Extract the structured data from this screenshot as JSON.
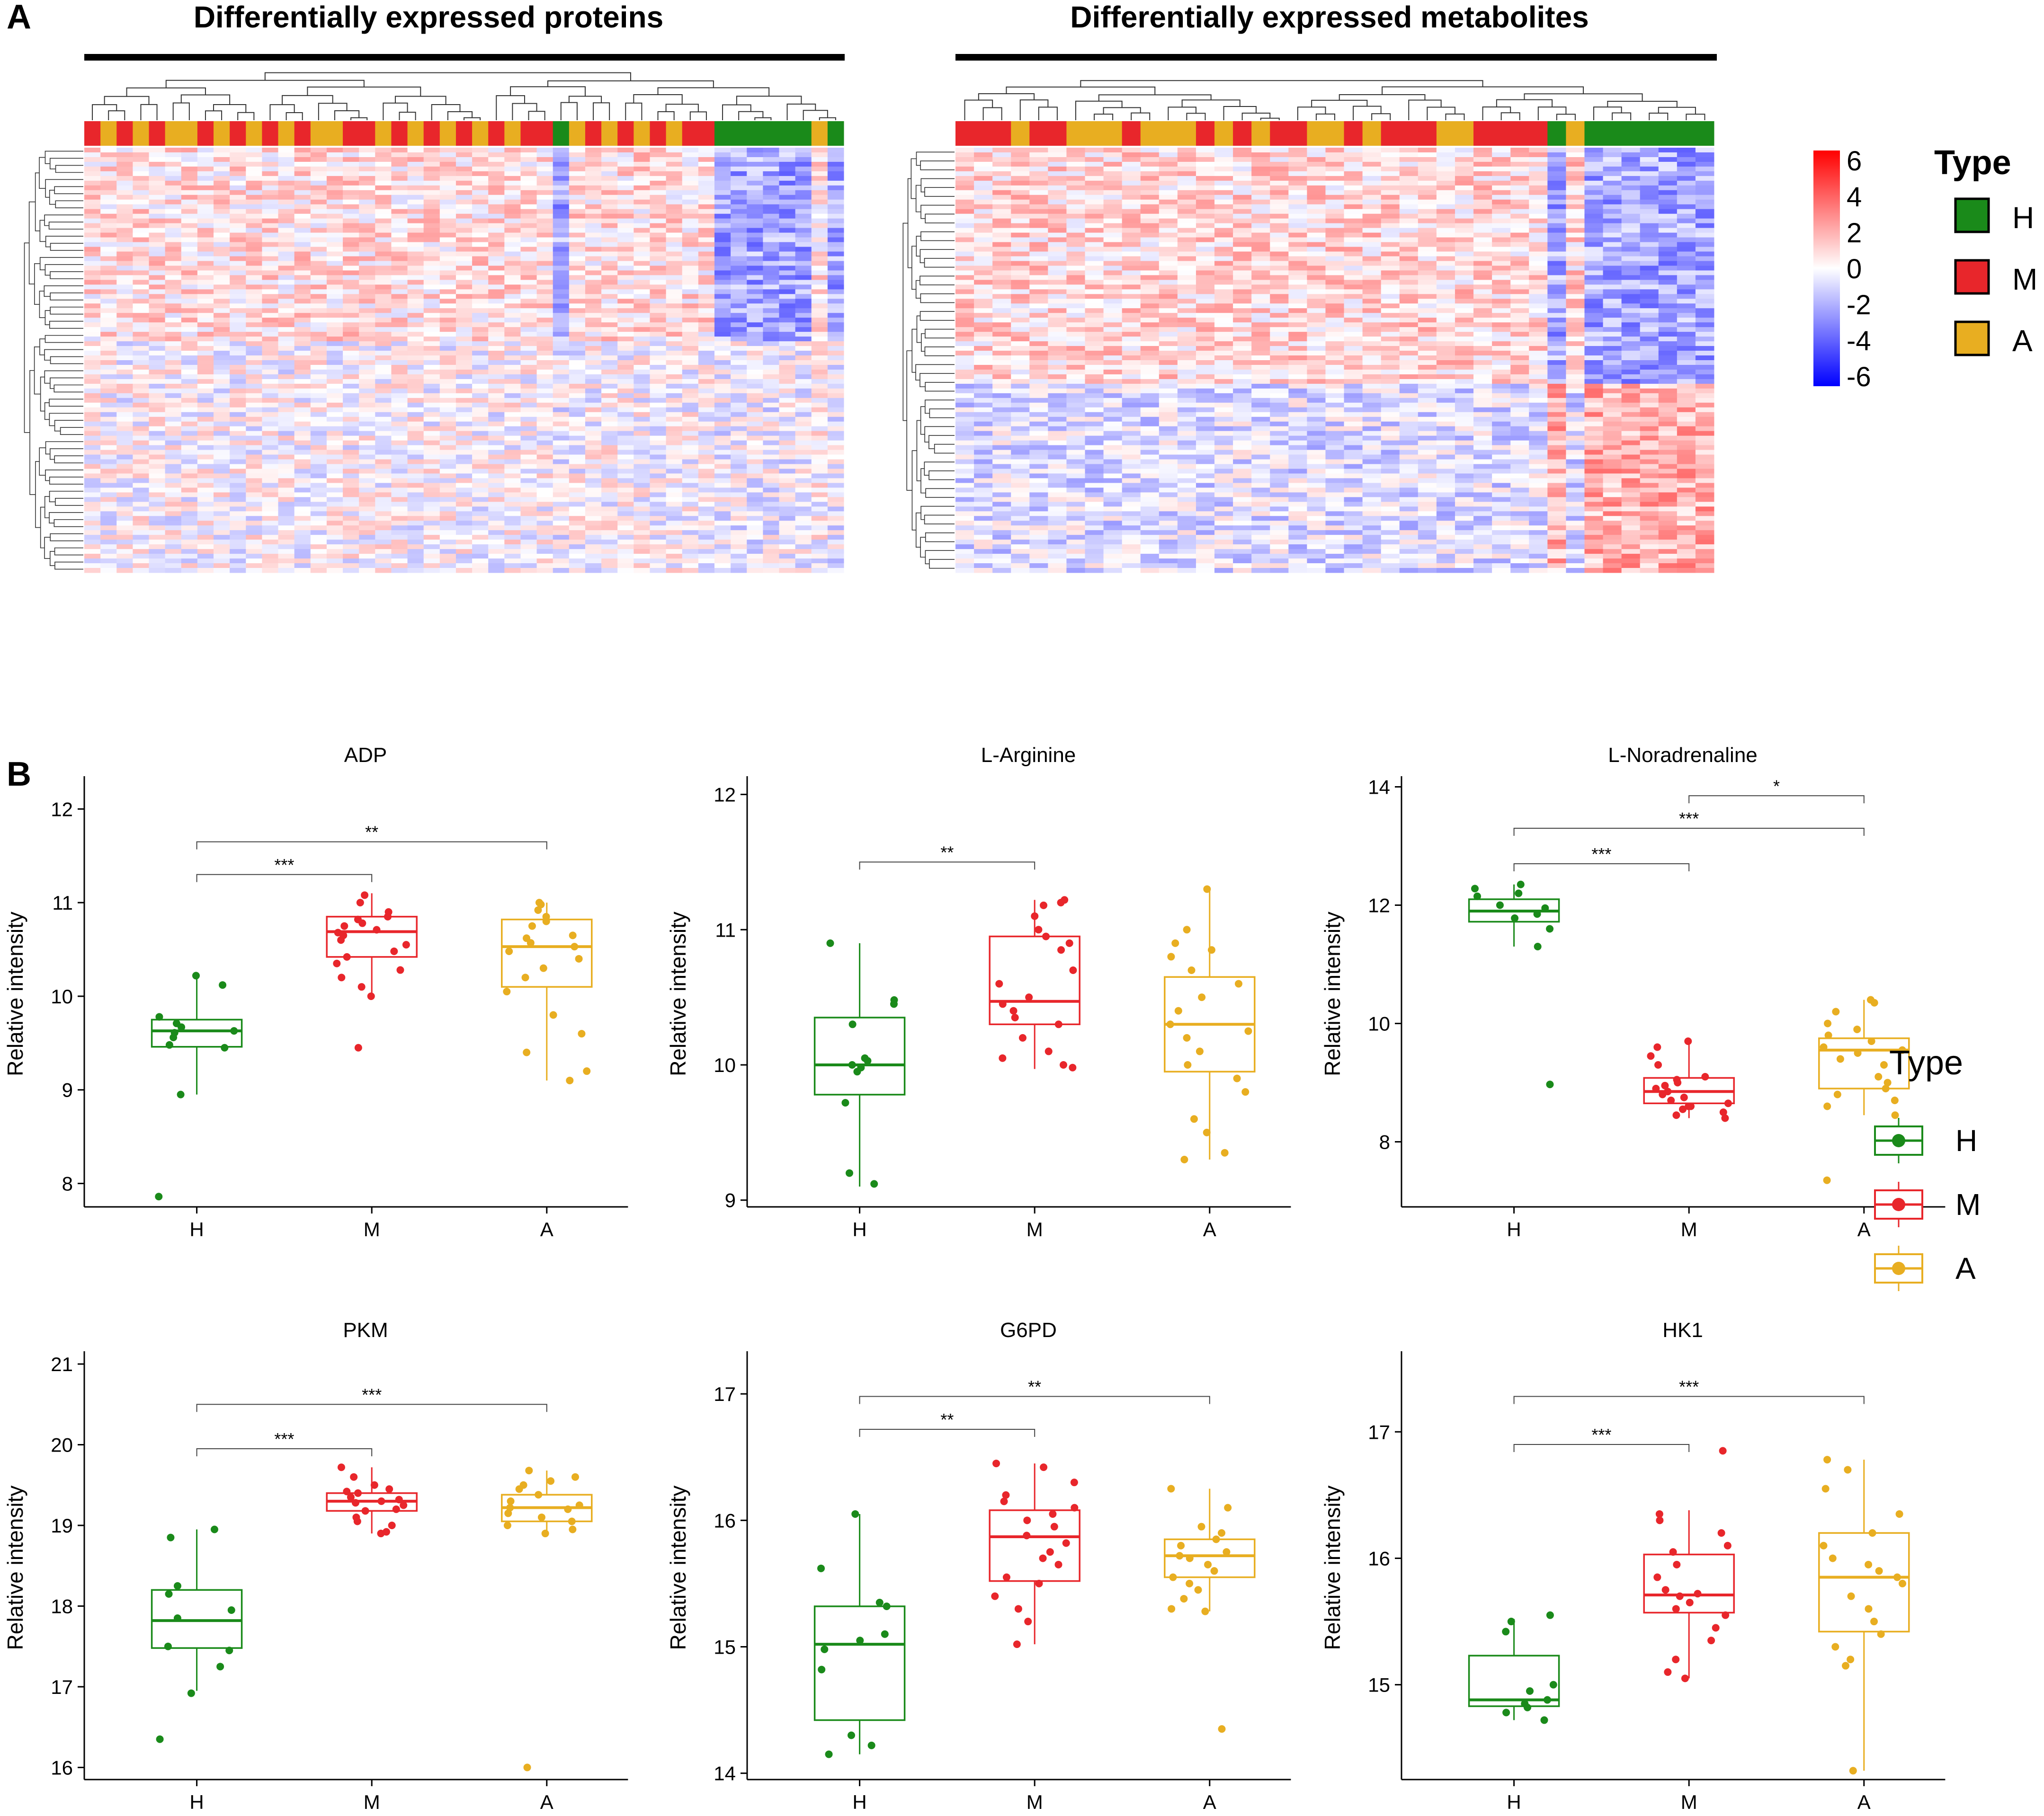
{
  "panel_labels": [
    "A",
    "B"
  ],
  "colors": {
    "H": "#1a8a1a",
    "M": "#e8262b",
    "A": "#e8ae21",
    "heat_high": "#ff0000",
    "heat_mid": "#ffffff",
    "heat_low": "#0000ff"
  },
  "chart_data": [
    {
      "type": "heatmap",
      "title": "Differentially expressed proteins",
      "annotation_groups": "H,M,A",
      "group_order": [
        "M",
        "A",
        "M",
        "A",
        "M",
        "A",
        "A",
        "M",
        "A",
        "M",
        "A",
        "M",
        "A",
        "M",
        "A",
        "A",
        "M",
        "M",
        "A",
        "M",
        "A",
        "M",
        "A",
        "M",
        "A",
        "M",
        "A",
        "M",
        "M",
        "H",
        "A",
        "M",
        "A",
        "M",
        "A",
        "M",
        "A",
        "M",
        "M",
        "H",
        "H",
        "H",
        "H",
        "H",
        "H",
        "A",
        "H"
      ],
      "color_scale": {
        "min": -6,
        "max": 6
      }
    },
    {
      "type": "heatmap",
      "title": "Differentially expressed metabolites",
      "group_order": [
        "M",
        "M",
        "M",
        "A",
        "M",
        "M",
        "A",
        "A",
        "A",
        "M",
        "A",
        "A",
        "A",
        "M",
        "A",
        "M",
        "A",
        "M",
        "M",
        "A",
        "A",
        "M",
        "A",
        "M",
        "M",
        "M",
        "A",
        "A",
        "M",
        "M",
        "M",
        "M",
        "H",
        "A",
        "H",
        "H",
        "H",
        "H",
        "H",
        "H",
        "H"
      ],
      "color_scale": {
        "min": -6,
        "max": 6
      }
    },
    {
      "type": "box",
      "title": "ADP",
      "ylabel": "Relative intensity",
      "categories": [
        "H",
        "M",
        "A"
      ],
      "ylim": [
        7.75,
        12.3
      ],
      "yticks": [
        8,
        9,
        10,
        11,
        12
      ],
      "boxes": [
        {
          "group": "H",
          "whisker_low": 8.95,
          "q1": 9.46,
          "median": 9.63,
          "q3": 9.75,
          "whisker_high": 10.22,
          "points": [
            9.78,
            9.63,
            9.71,
            9.67,
            9.61,
            9.56,
            9.45,
            9.48,
            10.12,
            10.22,
            8.95,
            7.86
          ]
        },
        {
          "group": "M",
          "whisker_low": 10.0,
          "q1": 10.42,
          "median": 10.69,
          "q3": 10.85,
          "whisker_high": 11.1,
          "points": [
            10.9,
            10.85,
            10.82,
            10.78,
            10.75,
            10.71,
            10.68,
            10.65,
            10.6,
            10.55,
            10.48,
            10.42,
            10.35,
            10.28,
            10.2,
            10.1,
            10.0,
            11.0,
            11.08,
            9.45
          ]
        },
        {
          "group": "A",
          "whisker_low": 9.1,
          "q1": 10.1,
          "median": 10.53,
          "q3": 10.82,
          "whisker_high": 11.0,
          "points": [
            10.98,
            10.92,
            10.85,
            10.8,
            10.75,
            10.65,
            10.57,
            10.53,
            10.4,
            10.3,
            10.2,
            10.05,
            9.8,
            9.6,
            9.4,
            9.2,
            9.1,
            11.0,
            10.62,
            10.48
          ]
        }
      ],
      "significance": [
        {
          "from": "H",
          "to": "M",
          "label": "***",
          "y": 11.3
        },
        {
          "from": "H",
          "to": "A",
          "label": "**",
          "y": 11.65
        }
      ]
    },
    {
      "type": "box",
      "title": "L-Arginine",
      "ylabel": "Relative intensity",
      "categories": [
        "H",
        "M",
        "A"
      ],
      "ylim": [
        8.95,
        12.1
      ],
      "yticks": [
        9,
        10,
        11,
        12
      ],
      "boxes": [
        {
          "group": "H",
          "whisker_low": 9.1,
          "q1": 9.78,
          "median": 10.0,
          "q3": 10.35,
          "whisker_high": 10.9,
          "points": [
            10.9,
            10.48,
            10.45,
            10.05,
            10.03,
            10.0,
            9.98,
            9.95,
            9.72,
            9.2,
            9.12,
            10.3
          ]
        },
        {
          "group": "M",
          "whisker_low": 9.97,
          "q1": 10.3,
          "median": 10.47,
          "q3": 10.95,
          "whisker_high": 11.22,
          "points": [
            11.22,
            11.2,
            11.18,
            11.1,
            11.0,
            10.95,
            10.9,
            10.85,
            10.7,
            10.6,
            10.5,
            10.45,
            10.4,
            10.35,
            10.3,
            10.2,
            10.05,
            10.0,
            9.98,
            10.1
          ]
        },
        {
          "group": "A",
          "whisker_low": 9.3,
          "q1": 9.95,
          "median": 10.3,
          "q3": 10.65,
          "whisker_high": 11.3,
          "points": [
            11.3,
            11.0,
            10.9,
            10.85,
            10.8,
            10.7,
            10.6,
            10.5,
            10.4,
            10.3,
            10.25,
            10.2,
            10.1,
            10.0,
            9.9,
            9.8,
            9.6,
            9.5,
            9.35,
            9.3
          ]
        }
      ],
      "significance": [
        {
          "from": "H",
          "to": "M",
          "label": "**",
          "y": 11.5
        }
      ]
    },
    {
      "type": "box",
      "title": "L-Noradrenaline",
      "ylabel": "Relative intensity",
      "categories": [
        "H",
        "M",
        "A"
      ],
      "ylim": [
        6.9,
        14.1
      ],
      "yticks": [
        8,
        10,
        12,
        14
      ],
      "boxes": [
        {
          "group": "H",
          "whisker_low": 11.3,
          "q1": 11.72,
          "median": 11.9,
          "q3": 12.1,
          "whisker_high": 12.35,
          "points": [
            12.35,
            12.28,
            12.2,
            12.15,
            12.0,
            11.95,
            11.85,
            11.78,
            11.6,
            11.3,
            8.97
          ]
        },
        {
          "group": "M",
          "whisker_low": 8.4,
          "q1": 8.65,
          "median": 8.85,
          "q3": 9.08,
          "whisker_high": 9.7,
          "points": [
            9.7,
            9.6,
            9.45,
            9.3,
            9.1,
            9.05,
            9.0,
            8.95,
            8.9,
            8.85,
            8.8,
            8.75,
            8.7,
            8.65,
            8.6,
            8.55,
            8.5,
            8.45,
            8.4,
            8.6
          ]
        },
        {
          "group": "A",
          "whisker_low": 8.45,
          "q1": 8.9,
          "median": 9.55,
          "q3": 9.75,
          "whisker_high": 10.4,
          "points": [
            10.4,
            10.35,
            10.2,
            10.0,
            9.9,
            9.8,
            9.7,
            9.6,
            9.55,
            9.5,
            9.4,
            9.3,
            9.1,
            9.0,
            8.9,
            8.8,
            8.7,
            8.6,
            8.45,
            7.35
          ]
        }
      ],
      "significance": [
        {
          "from": "H",
          "to": "M",
          "label": "***",
          "y": 12.7
        },
        {
          "from": "H",
          "to": "A",
          "label": "***",
          "y": 13.3
        },
        {
          "from": "M",
          "to": "A",
          "label": "*",
          "y": 13.85
        }
      ]
    },
    {
      "type": "box",
      "title": "PKM",
      "ylabel": "Relative intensity",
      "categories": [
        "H",
        "M",
        "A"
      ],
      "ylim": [
        15.85,
        21.1
      ],
      "yticks": [
        16,
        17,
        18,
        19,
        20,
        21
      ],
      "boxes": [
        {
          "group": "H",
          "whisker_low": 16.95,
          "q1": 17.48,
          "median": 17.82,
          "q3": 18.2,
          "whisker_high": 18.95,
          "points": [
            18.95,
            18.85,
            18.25,
            18.15,
            17.95,
            17.85,
            17.5,
            17.45,
            17.25,
            16.92,
            16.35
          ]
        },
        {
          "group": "M",
          "whisker_low": 18.9,
          "q1": 19.18,
          "median": 19.3,
          "q3": 19.4,
          "whisker_high": 19.72,
          "points": [
            19.72,
            19.6,
            19.5,
            19.45,
            19.42,
            19.4,
            19.35,
            19.32,
            19.3,
            19.28,
            19.25,
            19.2,
            19.18,
            19.1,
            19.05,
            19.0,
            18.92,
            18.9
          ]
        },
        {
          "group": "A",
          "whisker_low": 18.9,
          "q1": 19.05,
          "median": 19.22,
          "q3": 19.38,
          "whisker_high": 19.68,
          "points": [
            19.68,
            19.6,
            19.55,
            19.5,
            19.45,
            19.38,
            19.3,
            19.25,
            19.22,
            19.2,
            19.15,
            19.1,
            19.05,
            19.0,
            18.95,
            18.9,
            16.0
          ]
        }
      ],
      "significance": [
        {
          "from": "H",
          "to": "M",
          "label": "***",
          "y": 19.95
        },
        {
          "from": "H",
          "to": "A",
          "label": "***",
          "y": 20.5
        }
      ]
    },
    {
      "type": "box",
      "title": "G6PD",
      "ylabel": "Relative intensity",
      "categories": [
        "H",
        "M",
        "A"
      ],
      "ylim": [
        13.95,
        17.3
      ],
      "yticks": [
        14,
        15,
        16,
        17
      ],
      "boxes": [
        {
          "group": "H",
          "whisker_low": 14.15,
          "q1": 14.42,
          "median": 15.02,
          "q3": 15.32,
          "whisker_high": 16.05,
          "points": [
            16.05,
            15.62,
            15.35,
            15.32,
            15.05,
            14.98,
            14.82,
            14.3,
            14.22,
            14.15,
            15.1
          ]
        },
        {
          "group": "M",
          "whisker_low": 15.02,
          "q1": 15.52,
          "median": 15.87,
          "q3": 16.08,
          "whisker_high": 16.45,
          "points": [
            16.45,
            16.42,
            16.3,
            16.2,
            16.1,
            16.05,
            16.0,
            15.95,
            15.88,
            15.82,
            15.75,
            15.65,
            15.55,
            15.5,
            15.4,
            15.3,
            15.2,
            15.02,
            16.15,
            15.7
          ]
        },
        {
          "group": "A",
          "whisker_low": 15.28,
          "q1": 15.55,
          "median": 15.72,
          "q3": 15.85,
          "whisker_high": 16.25,
          "points": [
            16.25,
            16.1,
            15.95,
            15.9,
            15.85,
            15.8,
            15.75,
            15.72,
            15.7,
            15.65,
            15.6,
            15.55,
            15.5,
            15.45,
            15.38,
            15.3,
            15.28,
            14.35
          ]
        }
      ],
      "significance": [
        {
          "from": "H",
          "to": "M",
          "label": "**",
          "y": 16.72
        },
        {
          "from": "H",
          "to": "A",
          "label": "**",
          "y": 16.98
        }
      ]
    },
    {
      "type": "box",
      "title": "HK1",
      "ylabel": "Relative intensity",
      "categories": [
        "H",
        "M",
        "A"
      ],
      "ylim": [
        14.25,
        17.6
      ],
      "yticks": [
        15,
        16,
        17
      ],
      "boxes": [
        {
          "group": "H",
          "whisker_low": 14.72,
          "q1": 14.83,
          "median": 14.88,
          "q3": 15.23,
          "whisker_high": 15.52,
          "points": [
            15.55,
            15.5,
            15.42,
            15.0,
            14.95,
            14.88,
            14.85,
            14.82,
            14.78,
            14.72
          ]
        },
        {
          "group": "M",
          "whisker_low": 15.05,
          "q1": 15.57,
          "median": 15.71,
          "q3": 16.03,
          "whisker_high": 16.38,
          "points": [
            16.85,
            16.35,
            16.3,
            16.2,
            16.1,
            16.05,
            15.95,
            15.85,
            15.75,
            15.72,
            15.7,
            15.65,
            15.6,
            15.55,
            15.45,
            15.35,
            15.2,
            15.1,
            15.05
          ]
        },
        {
          "group": "A",
          "whisker_low": 14.32,
          "q1": 15.42,
          "median": 15.85,
          "q3": 16.2,
          "whisker_high": 16.78,
          "points": [
            16.78,
            16.7,
            16.55,
            16.35,
            16.2,
            16.1,
            16.0,
            15.95,
            15.9,
            15.85,
            15.8,
            15.7,
            15.6,
            15.5,
            15.4,
            15.3,
            15.2,
            15.15,
            14.32
          ]
        }
      ],
      "significance": [
        {
          "from": "H",
          "to": "M",
          "label": "***",
          "y": 16.9
        },
        {
          "from": "H",
          "to": "A",
          "label": "***",
          "y": 17.28
        }
      ]
    }
  ],
  "heatmap_legend": {
    "scale_ticks": [
      "6",
      "4",
      "2",
      "0",
      "-2",
      "-4",
      "-6"
    ],
    "title": "Type",
    "entries": [
      "H",
      "M",
      "A"
    ]
  },
  "box_legend": {
    "title": "Type",
    "entries": [
      "H",
      "M",
      "A"
    ]
  }
}
